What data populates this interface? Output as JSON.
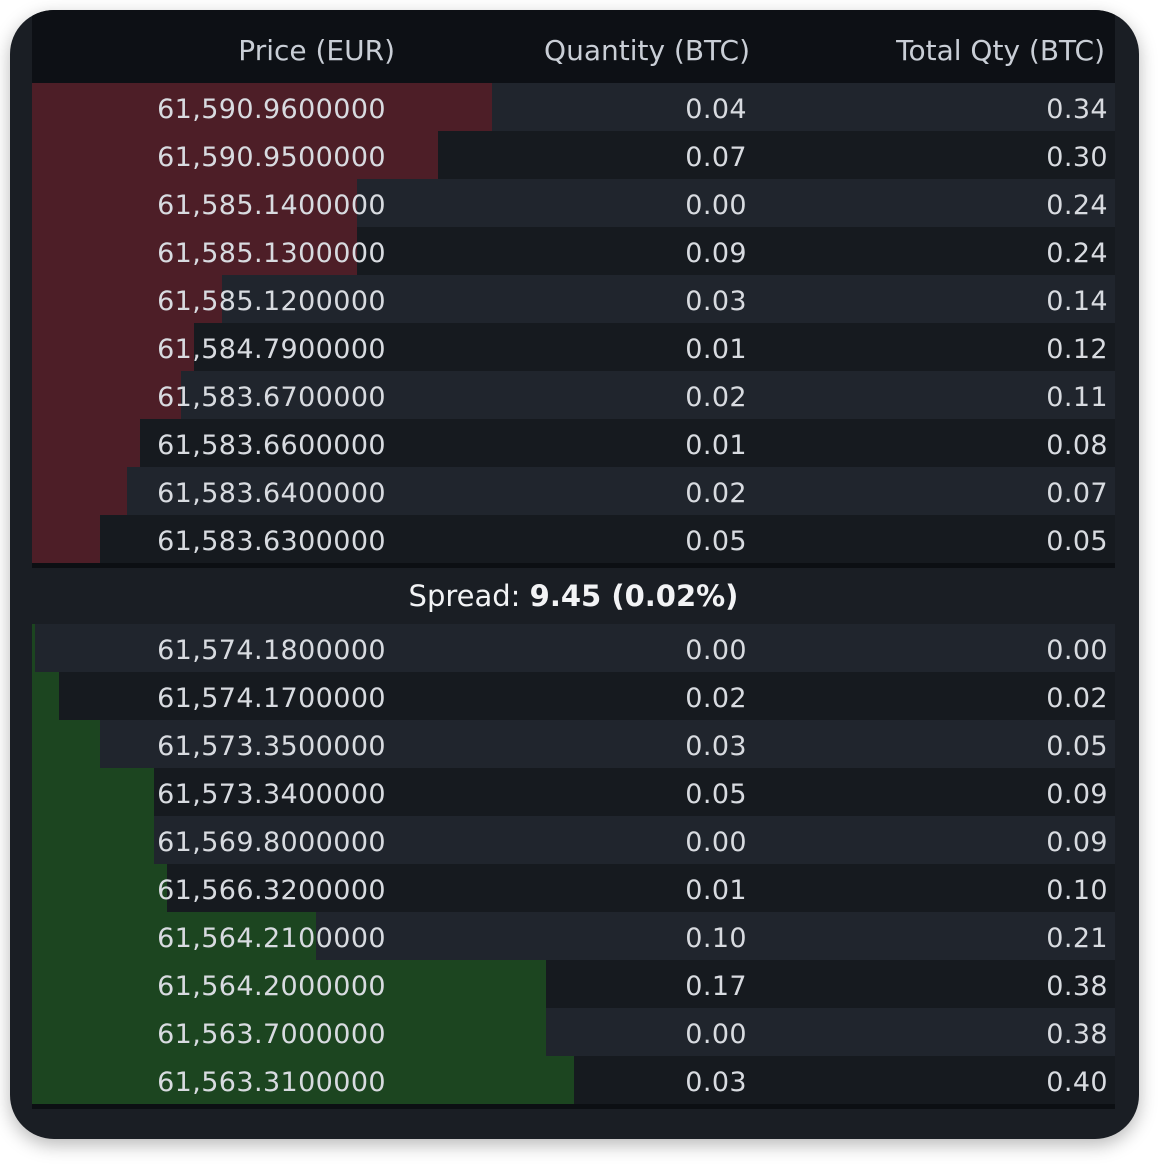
{
  "header": {
    "price": "Price (EUR)",
    "quantity": "Quantity (BTC)",
    "total": "Total Qty (BTC)"
  },
  "colors": {
    "ask_bar": "#4d1e27",
    "bid_bar": "#1c4520",
    "background": "#1a1e24",
    "header_bg": "#0d1015"
  },
  "asks": [
    {
      "price": "61,590.9600000",
      "qty": "0.04",
      "total": "0.34"
    },
    {
      "price": "61,590.9500000",
      "qty": "0.07",
      "total": "0.30"
    },
    {
      "price": "61,585.1400000",
      "qty": "0.00",
      "total": "0.24"
    },
    {
      "price": "61,585.1300000",
      "qty": "0.09",
      "total": "0.24"
    },
    {
      "price": "61,585.1200000",
      "qty": "0.03",
      "total": "0.14"
    },
    {
      "price": "61,584.7900000",
      "qty": "0.01",
      "total": "0.12"
    },
    {
      "price": "61,583.6700000",
      "qty": "0.02",
      "total": "0.11"
    },
    {
      "price": "61,583.6600000",
      "qty": "0.01",
      "total": "0.08"
    },
    {
      "price": "61,583.6400000",
      "qty": "0.02",
      "total": "0.07"
    },
    {
      "price": "61,583.6300000",
      "qty": "0.05",
      "total": "0.05"
    }
  ],
  "spread": {
    "label": "Spread:",
    "value": "9.45 (0.02%)"
  },
  "bids": [
    {
      "price": "61,574.1800000",
      "qty": "0.00",
      "total": "0.00"
    },
    {
      "price": "61,574.1700000",
      "qty": "0.02",
      "total": "0.02"
    },
    {
      "price": "61,573.3500000",
      "qty": "0.03",
      "total": "0.05"
    },
    {
      "price": "61,573.3400000",
      "qty": "0.05",
      "total": "0.09"
    },
    {
      "price": "61,569.8000000",
      "qty": "0.00",
      "total": "0.09"
    },
    {
      "price": "61,566.3200000",
      "qty": "0.01",
      "total": "0.10"
    },
    {
      "price": "61,564.2100000",
      "qty": "0.10",
      "total": "0.21"
    },
    {
      "price": "61,564.2000000",
      "qty": "0.17",
      "total": "0.38"
    },
    {
      "price": "61,563.7000000",
      "qty": "0.00",
      "total": "0.38"
    },
    {
      "price": "61,563.3100000",
      "qty": "0.03",
      "total": "0.40"
    }
  ]
}
